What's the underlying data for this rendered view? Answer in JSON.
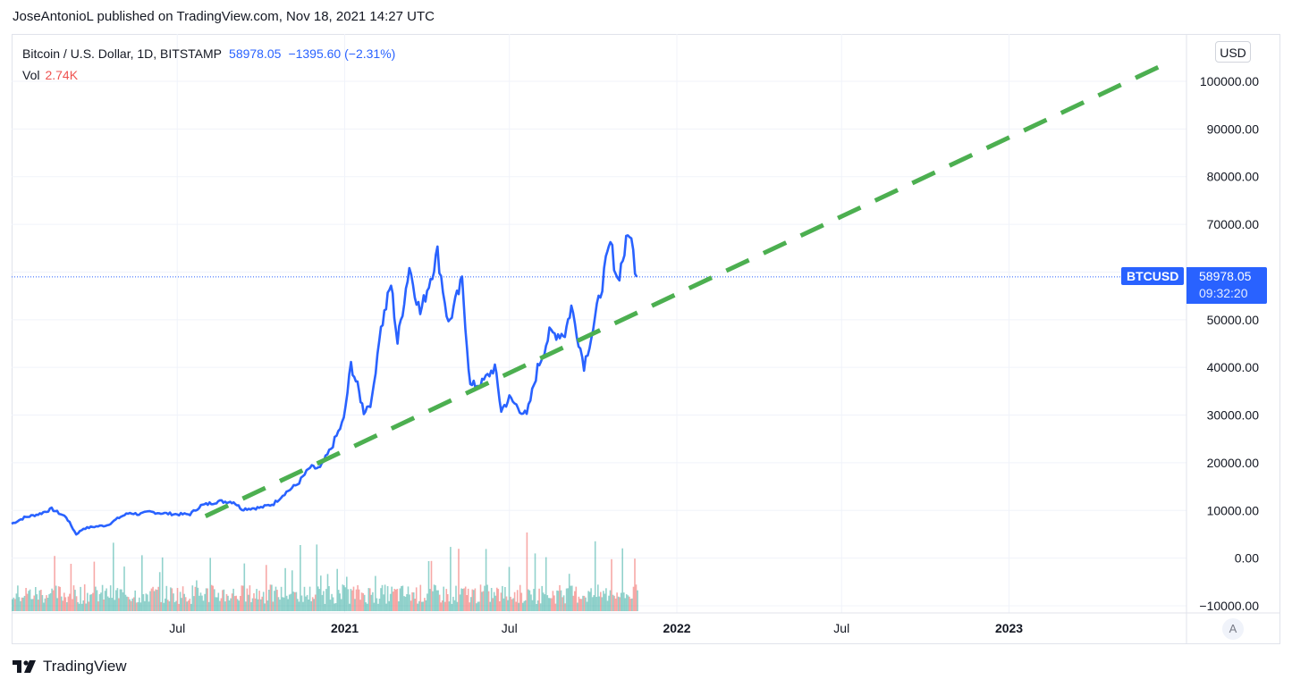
{
  "header": {
    "published": "JoseAntonioL published on TradingView.com, Nov 18, 2021 14:27 UTC"
  },
  "legend": {
    "symbol": "Bitcoin / U.S. Dollar, 1D, BITSTAMP",
    "close": "58978.05",
    "change": "−1395.60 (−2.31%)",
    "vol_label": "Vol",
    "vol_value": "2.74K"
  },
  "price_scale": {
    "currency": "USD",
    "auto": "A"
  },
  "last_price": {
    "symbol": "BTCUSD",
    "price": "58978.05",
    "countdown": "09:32:20"
  },
  "footer": {
    "brand": "TradingView"
  },
  "colors": {
    "price_line": "#2962ff",
    "trendline": "#4caf50",
    "vol_up": "#26a69a",
    "vol_down": "#ef5350",
    "grid": "#f0f3fa"
  },
  "chart_data": {
    "type": "line",
    "title": "Bitcoin / U.S. Dollar, 1D, BITSTAMP",
    "ylim": [
      -10000,
      105000
    ],
    "y_ticks": [
      -10000,
      0,
      10000,
      20000,
      30000,
      40000,
      50000,
      60000,
      70000,
      80000,
      90000,
      100000
    ],
    "y_tick_labels": [
      "−10000.00",
      "0.00",
      "10000.00",
      "20000.00",
      "30000.00",
      "40000.00",
      "50000.00",
      "60000.00",
      "70000.00",
      "80000.00",
      "90000.00",
      "100000.00"
    ],
    "x_ticks": [
      {
        "date": "2020-07-01",
        "label": "Jul"
      },
      {
        "date": "2021-01-01",
        "label": "2021"
      },
      {
        "date": "2021-07-01",
        "label": "Jul"
      },
      {
        "date": "2022-01-01",
        "label": "2022"
      },
      {
        "date": "2022-07-01",
        "label": "Jul"
      },
      {
        "date": "2023-01-01",
        "label": "2023"
      }
    ],
    "xlim": [
      "2020-01-01",
      "2023-07-15"
    ],
    "series": [
      {
        "type": "line",
        "points": [
          [
            "2020-01-01",
            7200
          ],
          [
            "2020-01-15",
            8500
          ],
          [
            "2020-02-01",
            9300
          ],
          [
            "2020-02-14",
            10300
          ],
          [
            "2020-03-01",
            8600
          ],
          [
            "2020-03-12",
            5000
          ],
          [
            "2020-03-20",
            6200
          ],
          [
            "2020-04-01",
            6600
          ],
          [
            "2020-04-15",
            6900
          ],
          [
            "2020-04-30",
            8700
          ],
          [
            "2020-05-10",
            9500
          ],
          [
            "2020-05-20",
            9200
          ],
          [
            "2020-06-01",
            9700
          ],
          [
            "2020-06-15",
            9400
          ],
          [
            "2020-07-01",
            9200
          ],
          [
            "2020-07-15",
            9200
          ],
          [
            "2020-07-27",
            11000
          ],
          [
            "2020-08-15",
            11900
          ],
          [
            "2020-09-01",
            11800
          ],
          [
            "2020-09-10",
            10300
          ],
          [
            "2020-10-01",
            10600
          ],
          [
            "2020-10-15",
            11400
          ],
          [
            "2020-10-27",
            13600
          ],
          [
            "2020-11-10",
            15500
          ],
          [
            "2020-11-24",
            19000
          ],
          [
            "2020-12-05",
            18800
          ],
          [
            "2020-12-17",
            23000
          ],
          [
            "2020-12-31",
            29000
          ],
          [
            "2021-01-08",
            40600
          ],
          [
            "2021-01-15",
            36000
          ],
          [
            "2021-01-22",
            30800
          ],
          [
            "2021-01-31",
            33100
          ],
          [
            "2021-02-08",
            46500
          ],
          [
            "2021-02-21",
            57500
          ],
          [
            "2021-02-28",
            45200
          ],
          [
            "2021-03-13",
            61200
          ],
          [
            "2021-03-25",
            51300
          ],
          [
            "2021-04-13",
            64000
          ],
          [
            "2021-04-25",
            49000
          ],
          [
            "2021-05-10",
            58000
          ],
          [
            "2021-05-19",
            36000
          ],
          [
            "2021-06-01",
            36700
          ],
          [
            "2021-06-15",
            40100
          ],
          [
            "2021-06-22",
            31000
          ],
          [
            "2021-07-01",
            33500
          ],
          [
            "2021-07-20",
            29800
          ],
          [
            "2021-08-01",
            39800
          ],
          [
            "2021-08-14",
            47000
          ],
          [
            "2021-08-31",
            47100
          ],
          [
            "2021-09-07",
            52700
          ],
          [
            "2021-09-21",
            40500
          ],
          [
            "2021-10-01",
            48100
          ],
          [
            "2021-10-15",
            61500
          ],
          [
            "2021-10-20",
            66000
          ],
          [
            "2021-10-28",
            58300
          ],
          [
            "2021-11-10",
            68800
          ],
          [
            "2021-11-18",
            58978
          ]
        ]
      },
      {
        "type": "trendline",
        "style": "dashed",
        "points": [
          [
            "2020-08-01",
            8800
          ],
          [
            "2023-06-20",
            103500
          ]
        ]
      }
    ]
  }
}
